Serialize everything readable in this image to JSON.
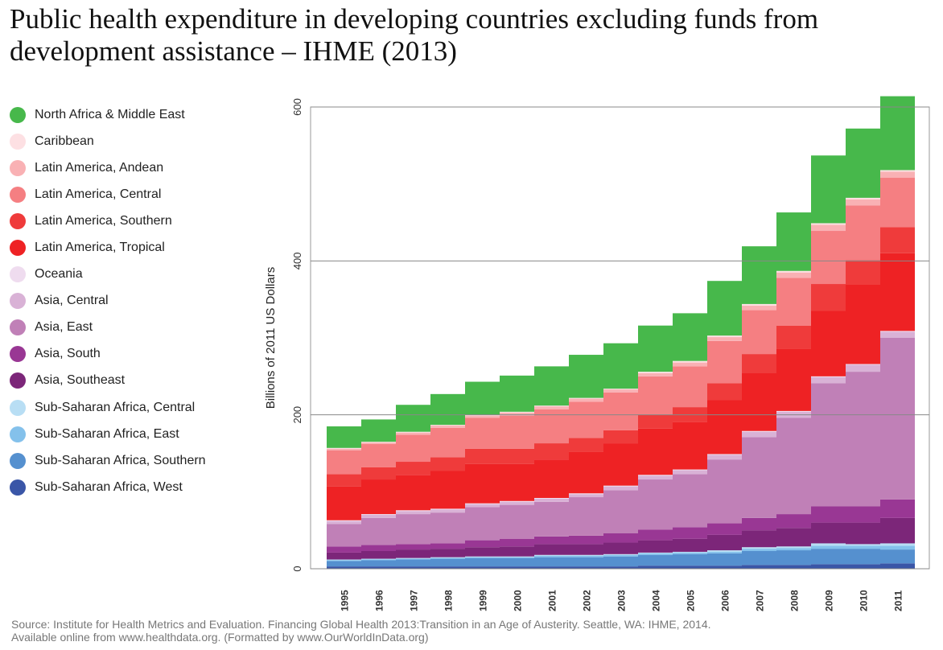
{
  "chart_data": {
    "type": "bar",
    "stacked": true,
    "title": "Public health expenditure in developing countries excluding funds from development assistance – IHME (2013)",
    "xlabel": "",
    "ylabel": "Billions of 2011 US Dollars",
    "ylim": [
      0,
      600
    ],
    "yticks": [
      "0",
      "200",
      "400",
      "600"
    ],
    "grid": true,
    "legend_position": "left",
    "categories": [
      "1995",
      "1996",
      "1997",
      "1998",
      "1999",
      "2000",
      "2001",
      "2002",
      "2003",
      "2004",
      "2005",
      "2006",
      "2007",
      "2008",
      "2009",
      "2010",
      "2011"
    ],
    "series": [
      {
        "name": "Sub-Saharan Africa, West",
        "color": "#3a56a7",
        "values": [
          3,
          3,
          3,
          3,
          3,
          3,
          3,
          3,
          3,
          4,
          4,
          4,
          5,
          5,
          6,
          6,
          7
        ]
      },
      {
        "name": "Sub-Saharan Africa, Southern",
        "color": "#5590cf",
        "values": [
          7,
          8,
          9,
          10,
          11,
          11,
          12,
          12,
          13,
          14,
          15,
          16,
          18,
          19,
          20,
          20,
          18
        ]
      },
      {
        "name": "Sub-Saharan Africa, East",
        "color": "#84c1eb",
        "values": [
          1,
          1,
          1,
          1,
          1,
          1,
          2,
          2,
          2,
          2,
          2,
          2,
          3,
          3,
          4,
          4,
          5
        ]
      },
      {
        "name": "Sub-Saharan Africa, Central",
        "color": "#b8def4",
        "values": [
          1,
          1,
          1,
          1,
          1,
          1,
          1,
          1,
          1,
          1,
          1,
          2,
          2,
          2,
          3,
          2,
          3
        ]
      },
      {
        "name": "Asia, Southeast",
        "color": "#7c2679",
        "values": [
          9,
          10,
          11,
          11,
          12,
          13,
          14,
          14,
          15,
          16,
          17,
          20,
          22,
          24,
          27,
          28,
          33
        ]
      },
      {
        "name": "Asia, South",
        "color": "#993794",
        "values": [
          8,
          8,
          7,
          7,
          9,
          10,
          10,
          11,
          12,
          14,
          15,
          15,
          16,
          18,
          21,
          21,
          24
        ]
      },
      {
        "name": "Asia, East",
        "color": "#c080b7",
        "values": [
          29,
          35,
          39,
          40,
          43,
          44,
          45,
          50,
          56,
          65,
          69,
          83,
          105,
          125,
          160,
          175,
          210
        ]
      },
      {
        "name": "Asia, Central",
        "color": "#d9b2d6",
        "values": [
          4,
          4,
          4,
          4,
          4,
          4,
          4,
          4,
          5,
          5,
          5,
          6,
          7,
          8,
          8,
          9,
          8
        ]
      },
      {
        "name": "Oceania",
        "color": "#efdcef",
        "values": [
          1,
          1,
          1,
          1,
          1,
          1,
          1,
          1,
          1,
          1,
          1,
          1,
          1,
          1,
          1,
          1,
          1
        ]
      },
      {
        "name": "Latin America, Tropical",
        "color": "#ee2224",
        "values": [
          44,
          45,
          46,
          49,
          51,
          48,
          50,
          54,
          55,
          60,
          62,
          70,
          75,
          81,
          85,
          103,
          101
        ]
      },
      {
        "name": "Latin America, Southern",
        "color": "#ef3b3b",
        "values": [
          16,
          16,
          17,
          18,
          20,
          20,
          21,
          18,
          17,
          18,
          19,
          22,
          25,
          30,
          35,
          32,
          34
        ]
      },
      {
        "name": "Latin America, Central",
        "color": "#f57f82",
        "values": [
          31,
          30,
          35,
          38,
          40,
          43,
          44,
          47,
          49,
          50,
          53,
          55,
          57,
          62,
          69,
          71,
          64
        ]
      },
      {
        "name": "Latin America, Andean",
        "color": "#f9b1b4",
        "values": [
          2,
          2,
          3,
          3,
          3,
          4,
          4,
          4,
          4,
          4,
          5,
          5,
          6,
          7,
          8,
          8,
          8
        ]
      },
      {
        "name": "Caribbean",
        "color": "#fde0e3",
        "values": [
          1,
          1,
          1,
          1,
          1,
          1,
          1,
          1,
          1,
          2,
          2,
          2,
          2,
          2,
          2,
          2,
          2
        ]
      },
      {
        "name": "North Africa & Middle East",
        "color": "#47b84b",
        "values": [
          28,
          29,
          35,
          40,
          43,
          47,
          51,
          56,
          59,
          60,
          62,
          71,
          75,
          76,
          88,
          90,
          96
        ]
      }
    ]
  },
  "legend_order": [
    "North Africa & Middle East",
    "Caribbean",
    "Latin America, Andean",
    "Latin America, Central",
    "Latin America, Southern",
    "Latin America, Tropical",
    "Oceania",
    "Asia, Central",
    "Asia, East",
    "Asia, South",
    "Asia, Southeast",
    "Sub-Saharan Africa, Central",
    "Sub-Saharan Africa, East",
    "Sub-Saharan Africa, Southern",
    "Sub-Saharan Africa, West"
  ],
  "source": {
    "line1": "Source: Institute for Health Metrics and Evaluation. Financing Global Health 2013:Transition in an Age of Austerity. Seattle, WA: IHME, 2014.",
    "line2": "Available online from www.healthdata.org. (Formatted by www.OurWorldInData.org)"
  }
}
